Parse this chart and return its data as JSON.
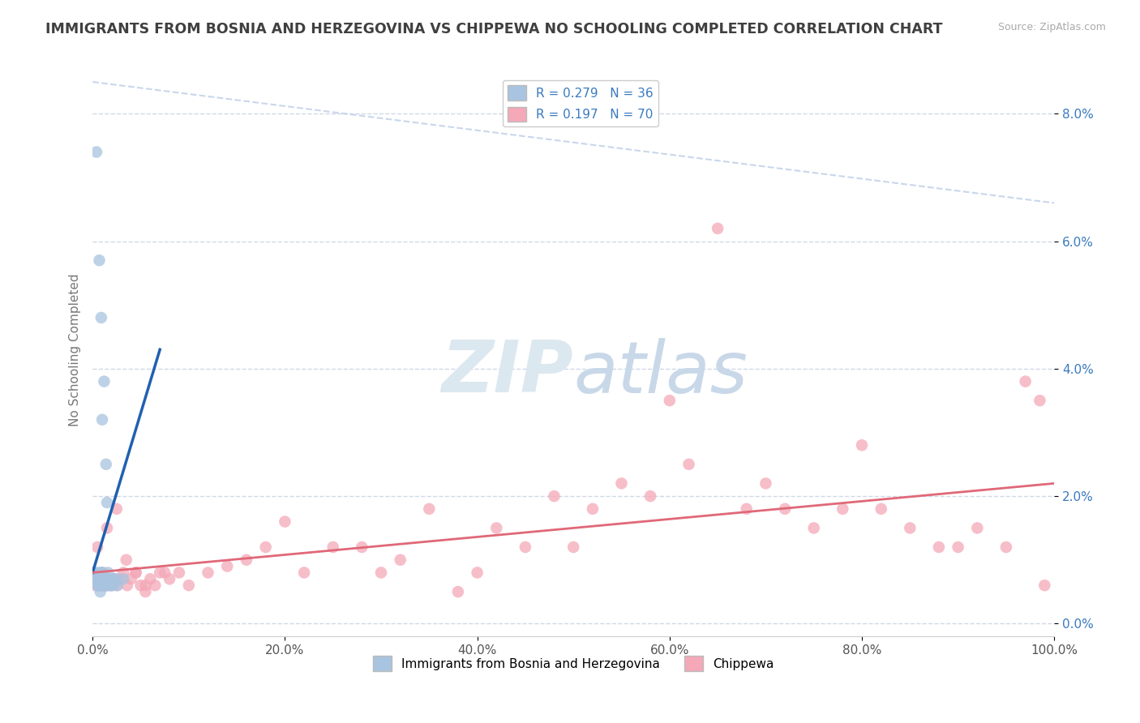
{
  "title": "IMMIGRANTS FROM BOSNIA AND HERZEGOVINA VS CHIPPEWA NO SCHOOLING COMPLETED CORRELATION CHART",
  "source": "Source: ZipAtlas.com",
  "ylabel": "No Schooling Completed",
  "legend_label_1": "Immigrants from Bosnia and Herzegovina",
  "legend_label_2": "Chippewa",
  "R1": 0.279,
  "N1": 36,
  "R2": 0.197,
  "N2": 70,
  "color1": "#a8c4e0",
  "color2": "#f4a8b8",
  "line_color1": "#2060b0",
  "line_color2": "#e06878",
  "trend_dash_color": "#c0d0e8",
  "bg_color": "#ffffff",
  "grid_color": "#d0d8e8",
  "title_color": "#404040",
  "legend_text_color": "#3a7abf",
  "xlim": [
    0.0,
    1.0
  ],
  "ylim": [
    -0.002,
    0.088
  ],
  "xticks": [
    0.0,
    0.2,
    0.4,
    0.6,
    0.8,
    1.0
  ],
  "yticks": [
    0.0,
    0.02,
    0.04,
    0.06,
    0.08
  ],
  "scatter1_x": [
    0.001,
    0.003,
    0.004,
    0.005,
    0.005,
    0.006,
    0.006,
    0.007,
    0.007,
    0.008,
    0.008,
    0.009,
    0.009,
    0.009,
    0.01,
    0.01,
    0.01,
    0.011,
    0.011,
    0.012,
    0.012,
    0.013,
    0.013,
    0.014,
    0.014,
    0.015,
    0.015,
    0.016,
    0.017,
    0.018,
    0.019,
    0.021,
    0.022,
    0.024,
    0.026,
    0.032
  ],
  "scatter1_y": [
    0.008,
    0.007,
    0.074,
    0.008,
    0.006,
    0.007,
    0.006,
    0.057,
    0.007,
    0.008,
    0.005,
    0.048,
    0.007,
    0.006,
    0.006,
    0.032,
    0.008,
    0.007,
    0.006,
    0.006,
    0.038,
    0.007,
    0.006,
    0.006,
    0.025,
    0.006,
    0.019,
    0.008,
    0.007,
    0.006,
    0.006,
    0.006,
    0.007,
    0.007,
    0.006,
    0.007
  ],
  "scatter2_x": [
    0.001,
    0.003,
    0.005,
    0.007,
    0.009,
    0.011,
    0.013,
    0.015,
    0.017,
    0.019,
    0.022,
    0.025,
    0.028,
    0.032,
    0.036,
    0.04,
    0.045,
    0.05,
    0.055,
    0.06,
    0.065,
    0.07,
    0.08,
    0.09,
    0.1,
    0.12,
    0.14,
    0.16,
    0.18,
    0.2,
    0.22,
    0.25,
    0.28,
    0.3,
    0.32,
    0.35,
    0.38,
    0.4,
    0.42,
    0.45,
    0.48,
    0.5,
    0.52,
    0.55,
    0.58,
    0.6,
    0.62,
    0.65,
    0.68,
    0.7,
    0.72,
    0.75,
    0.78,
    0.8,
    0.82,
    0.85,
    0.88,
    0.9,
    0.92,
    0.95,
    0.97,
    0.985,
    0.99,
    0.005,
    0.015,
    0.025,
    0.035,
    0.045,
    0.055,
    0.075
  ],
  "scatter2_y": [
    0.008,
    0.006,
    0.007,
    0.006,
    0.006,
    0.008,
    0.006,
    0.006,
    0.007,
    0.006,
    0.007,
    0.006,
    0.007,
    0.008,
    0.006,
    0.007,
    0.008,
    0.006,
    0.006,
    0.007,
    0.006,
    0.008,
    0.007,
    0.008,
    0.006,
    0.008,
    0.009,
    0.01,
    0.012,
    0.016,
    0.008,
    0.012,
    0.012,
    0.008,
    0.01,
    0.018,
    0.005,
    0.008,
    0.015,
    0.012,
    0.02,
    0.012,
    0.018,
    0.022,
    0.02,
    0.035,
    0.025,
    0.062,
    0.018,
    0.022,
    0.018,
    0.015,
    0.018,
    0.028,
    0.018,
    0.015,
    0.012,
    0.012,
    0.015,
    0.012,
    0.038,
    0.035,
    0.006,
    0.012,
    0.015,
    0.018,
    0.01,
    0.008,
    0.005,
    0.008
  ],
  "trendline1_x0": 0.0,
  "trendline1_y0": 0.008,
  "trendline1_x1": 0.07,
  "trendline1_y1": 0.043,
  "trendline2_x0": 0.0,
  "trendline2_y0": 0.008,
  "trendline2_x1": 1.0,
  "trendline2_y1": 0.022,
  "dashline_x0": 0.0,
  "dashline_y0": 0.085,
  "dashline_x1": 1.0,
  "dashline_y1": 0.066
}
